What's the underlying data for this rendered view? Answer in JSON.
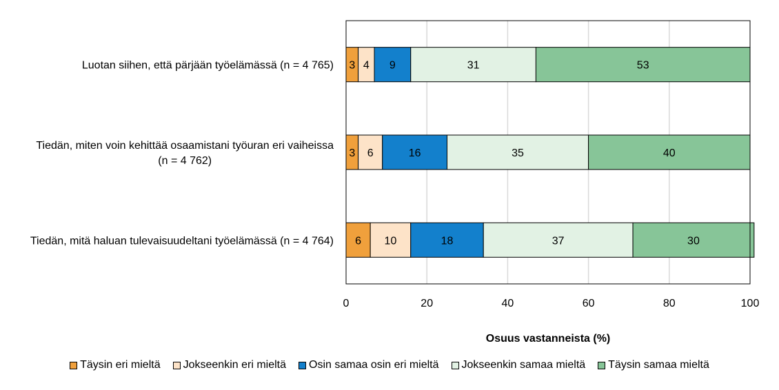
{
  "chart_data": {
    "type": "bar",
    "orientation": "horizontal",
    "stacked": true,
    "categories": [
      [
        "Luotan siihen, että pärjään työelämässä (n = 4 765)"
      ],
      [
        "Tiedän, miten voin kehittää osaamistani työuran eri vaiheissa",
        "(n = 4 762)"
      ],
      [
        "Tiedän, mitä haluan tulevaisuudeltani työelämässä (n = 4 764)"
      ]
    ],
    "series": [
      {
        "name": "Täysin eri mieltä",
        "color": "#F0A03C",
        "values": [
          3,
          3,
          6
        ]
      },
      {
        "name": "Jokseenkin eri mieltä",
        "color": "#FDE3C8",
        "values": [
          4,
          6,
          10
        ]
      },
      {
        "name": "Osin samaa osin eri mieltä",
        "color": "#1380CC",
        "values": [
          9,
          16,
          18
        ]
      },
      {
        "name": "Jokseenkin samaa mieltä",
        "color": "#E2F2E4",
        "values": [
          31,
          35,
          37
        ]
      },
      {
        "name": "Täysin samaa mieltä",
        "color": "#87C598",
        "values": [
          53,
          40,
          30
        ]
      }
    ],
    "xlabel": "Osuus vastanneista (%)",
    "xlim": [
      0,
      100
    ],
    "xticks": [
      0,
      20,
      40,
      60,
      80,
      100
    ],
    "grid": true,
    "legend_position": "bottom"
  }
}
